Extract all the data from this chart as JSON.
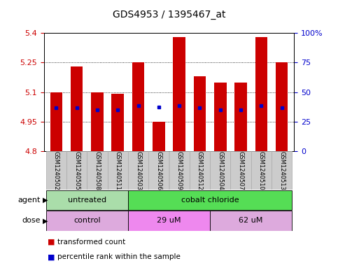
{
  "title": "GDS4953 / 1395467_at",
  "samples": [
    "GSM1240502",
    "GSM1240505",
    "GSM1240508",
    "GSM1240511",
    "GSM1240503",
    "GSM1240506",
    "GSM1240509",
    "GSM1240512",
    "GSM1240504",
    "GSM1240507",
    "GSM1240510",
    "GSM1240513"
  ],
  "bar_tops": [
    5.1,
    5.23,
    5.1,
    5.09,
    5.25,
    4.95,
    5.38,
    5.18,
    5.15,
    5.15,
    5.38,
    5.25
  ],
  "blue_y": [
    5.02,
    5.02,
    5.01,
    5.01,
    5.03,
    5.025,
    5.03,
    5.02,
    5.01,
    5.01,
    5.03,
    5.02
  ],
  "ymin": 4.8,
  "ymax": 5.4,
  "yticks": [
    4.8,
    4.95,
    5.1,
    5.25,
    5.4
  ],
  "right_yticks": [
    0,
    25,
    50,
    75,
    100
  ],
  "bar_color": "#cc0000",
  "blue_color": "#0000cc",
  "bg_color": "#ffffff",
  "agent_groups": [
    {
      "label": "untreated",
      "start": 0,
      "end": 3,
      "color": "#aaddaa"
    },
    {
      "label": "cobalt chloride",
      "start": 4,
      "end": 11,
      "color": "#55dd55"
    }
  ],
  "dose_groups": [
    {
      "label": "control",
      "start": 0,
      "end": 3,
      "color": "#ddaadd"
    },
    {
      "label": "29 uM",
      "start": 4,
      "end": 7,
      "color": "#ee88ee"
    },
    {
      "label": "62 uM",
      "start": 8,
      "end": 11,
      "color": "#ddaadd"
    }
  ],
  "bar_width": 0.6,
  "left_label_color": "#cc0000",
  "right_label_color": "#0000cc",
  "legend_items": [
    {
      "label": "transformed count",
      "color": "#cc0000"
    },
    {
      "label": "percentile rank within the sample",
      "color": "#0000cc"
    }
  ]
}
